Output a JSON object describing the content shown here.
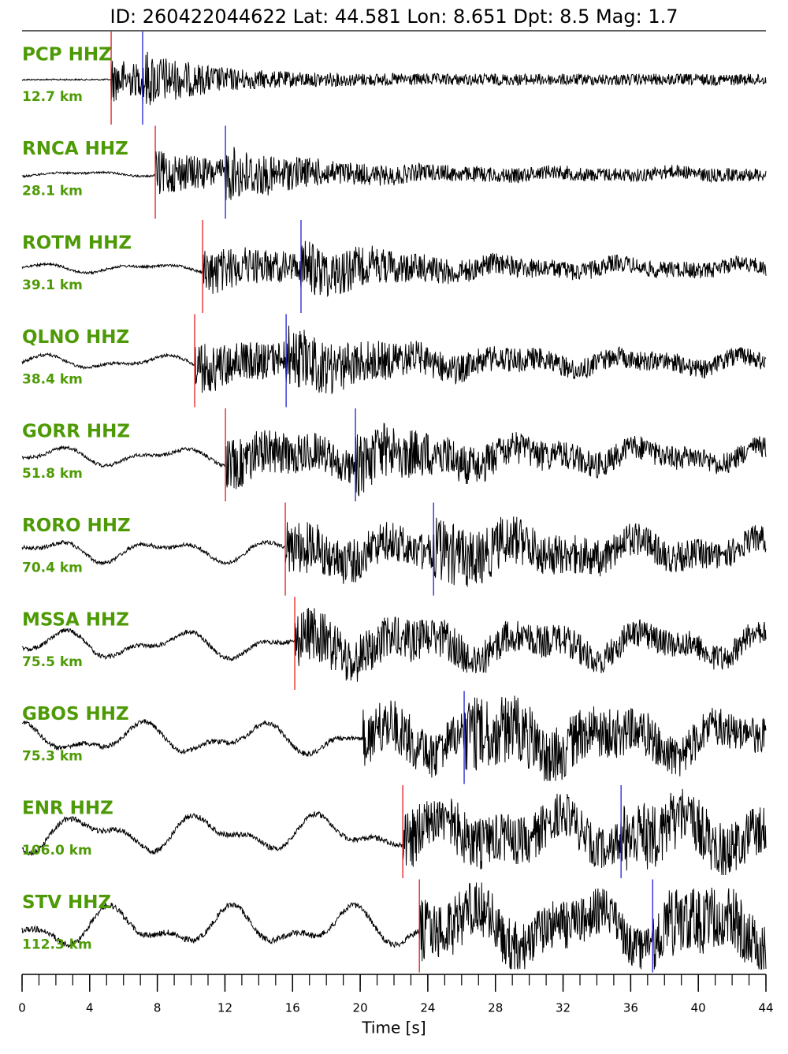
{
  "chart_data": {
    "type": "seismogram",
    "title": "ID: 260422044622 Lat:  44.581 Lon:   8.651 Dpt:     8.5 Mag:   1.7",
    "xlabel": "Time [s]",
    "xlim": [
      0,
      44
    ],
    "xticks": [
      0,
      4,
      8,
      12,
      16,
      20,
      24,
      28,
      32,
      36,
      40,
      44
    ],
    "label_color": "#4e9a06",
    "p_color": "#e41a1c",
    "s_color": "#1f1fd6",
    "trace_color": "#000000",
    "stations": [
      {
        "name": "PCP HHZ",
        "distance": "12.7 km",
        "p_pick": 5.27,
        "s_pick": 7.13
      },
      {
        "name": "RNCA HHZ",
        "distance": "28.1 km",
        "p_pick": 7.88,
        "s_pick": 12.03
      },
      {
        "name": "ROTM HHZ",
        "distance": "39.1 km",
        "p_pick": 10.68,
        "s_pick": 16.5
      },
      {
        "name": "QLNO HHZ",
        "distance": "38.4 km",
        "p_pick": 10.21,
        "s_pick": 15.62
      },
      {
        "name": "GORR HHZ",
        "distance": "51.8 km",
        "p_pick": 12.03,
        "s_pick": 19.72
      },
      {
        "name": "RORO HHZ",
        "distance": "70.4 km",
        "p_pick": 15.57,
        "s_pick": 24.34
      },
      {
        "name": "MSSA HHZ",
        "distance": "75.5 km",
        "p_pick": 16.13,
        "s_pick": null
      },
      {
        "name": "GBOS HHZ",
        "distance": "75.3 km",
        "p_pick": null,
        "s_pick": 26.15
      },
      {
        "name": "ENR HHZ",
        "distance": "106.0 km",
        "p_pick": 22.52,
        "s_pick": 35.43
      },
      {
        "name": "STV HHZ",
        "distance": "112.3 km",
        "p_pick": 23.5,
        "s_pick": 37.3
      }
    ]
  }
}
